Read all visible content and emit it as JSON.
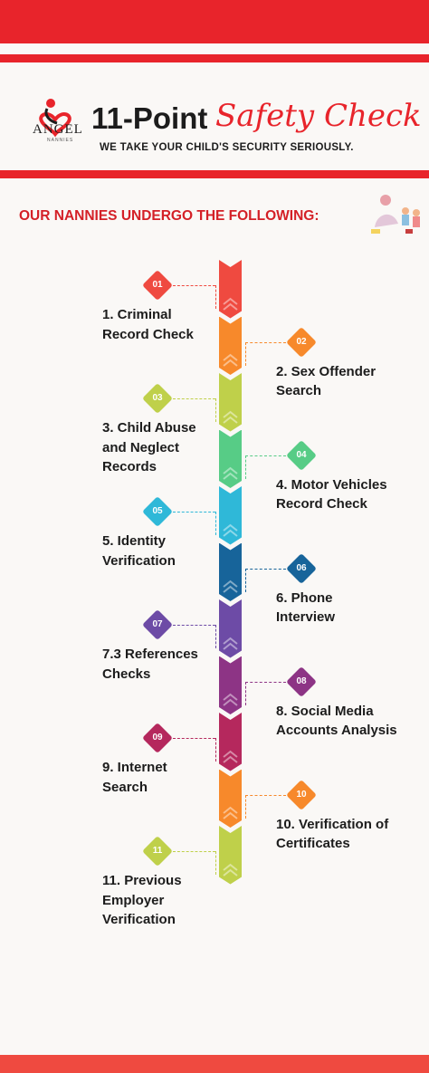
{
  "header": {
    "title_main": "11-Point",
    "title_script": "Safety Check",
    "tagline": "WE TAKE YOUR CHILD'S SECURITY SERIOUSLY.",
    "logo_text": "ANGEL",
    "logo_subtext": "NANNIES"
  },
  "colors": {
    "brand_red": "#e8242b",
    "heading_red": "#d42027"
  },
  "heading": "OUR NANNIES UNDERGO THE FOLLOWING:",
  "steps": [
    {
      "number": "01",
      "label": "1. Criminal Record Check",
      "color": "#ef4a40"
    },
    {
      "number": "02",
      "label": "2. Sex Offender Search",
      "color": "#f7892b"
    },
    {
      "number": "03",
      "label": "3. Child Abuse and Neglect Records",
      "color": "#bfd04a"
    },
    {
      "number": "04",
      "label": "4. Motor Vehicles Record Check",
      "color": "#57cc86"
    },
    {
      "number": "05",
      "label": "5. Identity Verification",
      "color": "#2fb8d8"
    },
    {
      "number": "06",
      "label": "6. Phone Interview",
      "color": "#17649a"
    },
    {
      "number": "07",
      "label": "7.3 References Checks",
      "color": "#6d4ba6"
    },
    {
      "number": "08",
      "label": "8. Social Media Accounts Analysis",
      "color": "#8d3485"
    },
    {
      "number": "09",
      "label": "9. Internet Search",
      "color": "#b5285d"
    },
    {
      "number": "10",
      "label": "10. Verification of Certificates",
      "color": "#f7892b"
    },
    {
      "number": "11",
      "label": "11. Previous Employer Verification",
      "color": "#bfd04a"
    }
  ]
}
